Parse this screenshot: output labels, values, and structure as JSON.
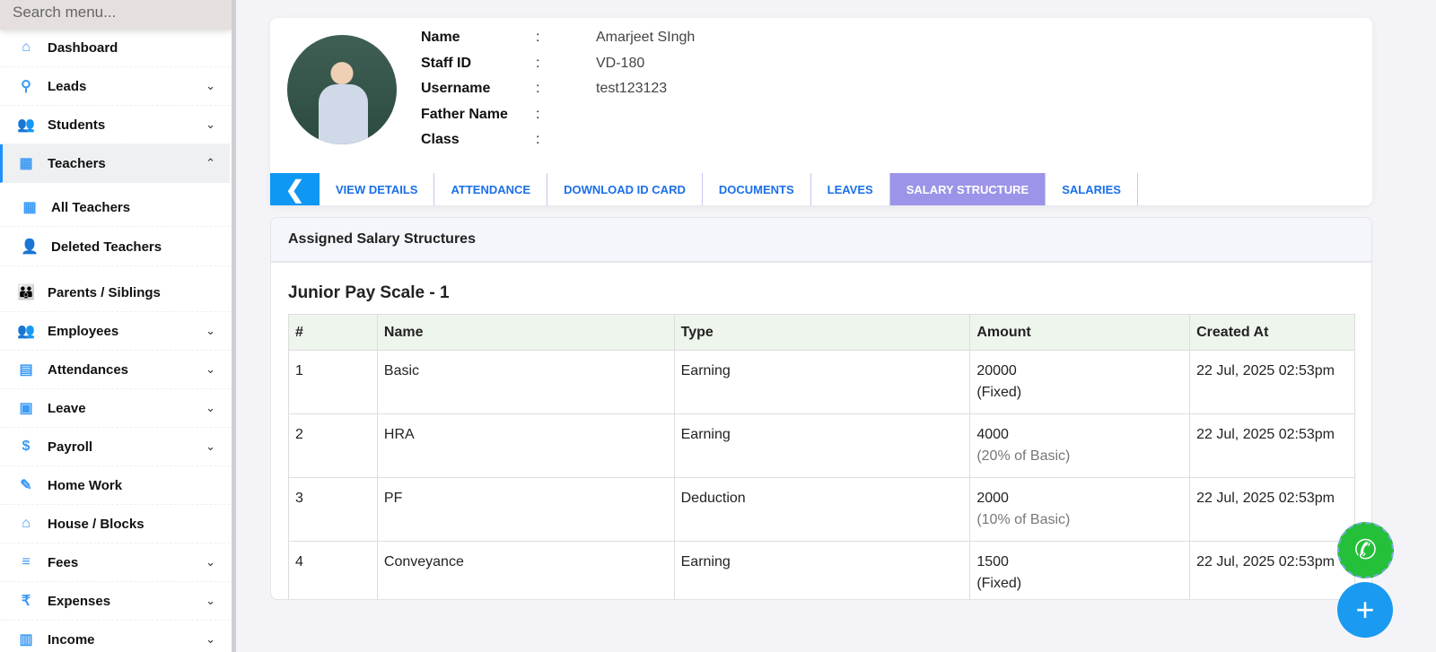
{
  "sidebar": {
    "search_placeholder": "Search menu...",
    "items": [
      {
        "label": "Dashboard",
        "icon": "home-icon",
        "chevron": ""
      },
      {
        "label": "Leads",
        "icon": "leads-icon",
        "chevron": "down"
      },
      {
        "label": "Students",
        "icon": "students-icon",
        "chevron": "down"
      },
      {
        "label": "Teachers",
        "icon": "teachers-icon",
        "chevron": "up",
        "active": true
      },
      {
        "label": "All Teachers",
        "icon": "teachers-icon",
        "chevron": ""
      },
      {
        "label": "Deleted Teachers",
        "icon": "user-delete-icon",
        "chevron": ""
      },
      {
        "label": "Parents / Siblings",
        "icon": "parents-icon",
        "chevron": ""
      },
      {
        "label": "Employees",
        "icon": "employees-icon",
        "chevron": "down"
      },
      {
        "label": "Attendances",
        "icon": "attendance-icon",
        "chevron": "down"
      },
      {
        "label": "Leave",
        "icon": "leave-icon",
        "chevron": "down"
      },
      {
        "label": "Payroll",
        "icon": "payroll-icon",
        "chevron": "down"
      },
      {
        "label": "Home Work",
        "icon": "homework-icon",
        "chevron": ""
      },
      {
        "label": "House / Blocks",
        "icon": "house-icon",
        "chevron": ""
      },
      {
        "label": "Fees",
        "icon": "fees-icon",
        "chevron": "down"
      },
      {
        "label": "Expenses",
        "icon": "expenses-icon",
        "chevron": "down"
      },
      {
        "label": "Income",
        "icon": "income-icon",
        "chevron": "down"
      }
    ]
  },
  "profile": {
    "fields": [
      {
        "label": "Name",
        "value": "Amarjeet SIngh"
      },
      {
        "label": "Staff ID",
        "value": "VD-180"
      },
      {
        "label": "Username",
        "value": "test123123"
      },
      {
        "label": "Father Name",
        "value": ""
      },
      {
        "label": "Class",
        "value": ""
      }
    ],
    "separator": ":"
  },
  "tabs": [
    "VIEW DETAILS",
    "ATTENDANCE",
    "DOWNLOAD ID CARD",
    "DOCUMENTS",
    "LEAVES",
    "SALARY STRUCTURE",
    "SALARIES"
  ],
  "active_tab": "SALARY STRUCTURE",
  "panel": {
    "header": "Assigned Salary Structures",
    "title": "Junior Pay Scale - 1",
    "columns": [
      "#",
      "Name",
      "Type",
      "Amount",
      "Created At"
    ],
    "rows": [
      [
        "1",
        "Basic",
        "Earning",
        "20000",
        "(Fixed)",
        "22 Jul, 2025 02:53pm"
      ],
      [
        "2",
        "HRA",
        "Earning",
        "4000",
        "(20% of Basic)",
        "22 Jul, 2025 02:53pm"
      ],
      [
        "3",
        "PF",
        "Deduction",
        "2000",
        "(10% of Basic)",
        "22 Jul, 2025 02:53pm"
      ],
      [
        "4",
        "Conveyance",
        "Earning",
        "1500",
        "(Fixed)",
        "22 Jul, 2025 02:53pm"
      ]
    ]
  },
  "colors": {
    "accent": "#1096f3",
    "active_tab": "#9b94e8",
    "whatsapp": "#25c03a"
  }
}
